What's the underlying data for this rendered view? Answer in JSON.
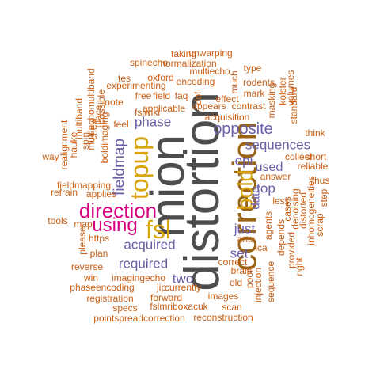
{
  "colors": {
    "grey": "#4d4d4d",
    "brown": "#996515",
    "gold": "#d9a50e",
    "purple": "#6a5fa7",
    "magenta": "#d6007e",
    "orange": "#c95f14"
  },
  "words": [
    {
      "text": "distortion",
      "color": "grey",
      "vertical": true
    },
    {
      "text": "mion",
      "color": "grey",
      "vertical": true
    },
    {
      "text": "correction",
      "color": "brown",
      "vertical": true
    },
    {
      "text": "topup",
      "color": "gold",
      "vertical": true
    },
    {
      "text": "bold",
      "color": "gold",
      "vertical": true
    },
    {
      "text": "fsl",
      "color": "gold",
      "vertical": false
    },
    {
      "text": "direction",
      "color": "magenta",
      "vertical": false
    },
    {
      "text": "using",
      "color": "magenta",
      "vertical": false
    },
    {
      "text": "opposite",
      "color": "purple",
      "vertical": false
    },
    {
      "text": "sequences",
      "color": "purple",
      "vertical": false
    },
    {
      "text": "phase",
      "color": "purple",
      "vertical": false
    },
    {
      "text": "acquired",
      "color": "purple",
      "vertical": false
    },
    {
      "text": "required",
      "color": "purple",
      "vertical": false
    },
    {
      "text": "fieldmap",
      "color": "purple",
      "vertical": true
    },
    {
      "text": "epi",
      "color": "purple",
      "vertical": false
    },
    {
      "text": "used",
      "color": "purple",
      "vertical": false
    },
    {
      "text": "top",
      "color": "purple",
      "vertical": false
    },
    {
      "text": "data",
      "color": "purple",
      "vertical": true
    },
    {
      "text": "just",
      "color": "purple",
      "vertical": false
    },
    {
      "text": "set",
      "color": "purple",
      "vertical": false
    },
    {
      "text": "two",
      "color": "purple",
      "vertical": false
    },
    {
      "text": "taking",
      "color": "orange",
      "vertical": false
    },
    {
      "text": "unwarping",
      "color": "orange",
      "vertical": false
    },
    {
      "text": "spinecho",
      "color": "orange",
      "vertical": false
    },
    {
      "text": "normalization",
      "color": "orange",
      "vertical": false
    },
    {
      "text": "type",
      "color": "orange",
      "vertical": false
    },
    {
      "text": "multiecho",
      "color": "orange",
      "vertical": false
    },
    {
      "text": "tes",
      "color": "orange",
      "vertical": false
    },
    {
      "text": "oxford",
      "color": "orange",
      "vertical": false
    },
    {
      "text": "encoding",
      "color": "orange",
      "vertical": false
    },
    {
      "text": "much",
      "color": "orange",
      "vertical": true
    },
    {
      "text": "rodents",
      "color": "orange",
      "vertical": false
    },
    {
      "text": "experimenting",
      "color": "orange",
      "vertical": false
    },
    {
      "text": "free",
      "color": "orange",
      "vertical": false
    },
    {
      "text": "field",
      "color": "orange",
      "vertical": false
    },
    {
      "text": "faq",
      "color": "orange",
      "vertical": false
    },
    {
      "text": "dof",
      "color": "orange",
      "vertical": true
    },
    {
      "text": "mark",
      "color": "orange",
      "vertical": false
    },
    {
      "text": "effect",
      "color": "orange",
      "vertical": false
    },
    {
      "text": "note",
      "color": "orange",
      "vertical": false
    },
    {
      "text": "applicable",
      "color": "orange",
      "vertical": false
    },
    {
      "text": "appears",
      "color": "orange",
      "vertical": false
    },
    {
      "text": "contrast",
      "color": "orange",
      "vertical": false
    },
    {
      "text": "fslwiki",
      "color": "orange",
      "vertical": false
    },
    {
      "text": "acquisition",
      "color": "orange",
      "vertical": false
    },
    {
      "text": "masking",
      "color": "orange",
      "vertical": true
    },
    {
      "text": "kolster",
      "color": "orange",
      "vertical": true
    },
    {
      "text": "volumes",
      "color": "orange",
      "vertical": true
    },
    {
      "text": "standard",
      "color": "orange",
      "vertical": true
    },
    {
      "text": "multiband",
      "color": "orange",
      "vertical": true
    },
    {
      "text": "multiechomultiband",
      "color": "orange",
      "vertical": true
    },
    {
      "text": "realignment",
      "color": "orange",
      "vertical": true
    },
    {
      "text": "hauke",
      "color": "orange",
      "vertical": true
    },
    {
      "text": "spin",
      "color": "orange",
      "vertical": true
    },
    {
      "text": "chew",
      "color": "orange",
      "vertical": true
    },
    {
      "text": "place",
      "color": "orange",
      "vertical": true
    },
    {
      "text": "possible",
      "color": "orange",
      "vertical": true
    },
    {
      "text": "boldimaging",
      "color": "orange",
      "vertical": true
    },
    {
      "text": "feel",
      "color": "orange",
      "vertical": false
    },
    {
      "text": "think",
      "color": "orange",
      "vertical": false
    },
    {
      "text": "way",
      "color": "orange",
      "vertical": false
    },
    {
      "text": "collect",
      "color": "orange",
      "vertical": false
    },
    {
      "text": "short",
      "color": "orange",
      "vertical": false
    },
    {
      "text": "reliable",
      "color": "orange",
      "vertical": false
    },
    {
      "text": "answer",
      "color": "orange",
      "vertical": false
    },
    {
      "text": "fieldmapping",
      "color": "orange",
      "vertical": false
    },
    {
      "text": "thus",
      "color": "orange",
      "vertical": false
    },
    {
      "text": "refrain",
      "color": "orange",
      "vertical": false
    },
    {
      "text": "applies",
      "color": "orange",
      "vertical": false
    },
    {
      "text": "step",
      "color": "orange",
      "vertical": true
    },
    {
      "text": "less",
      "color": "orange",
      "vertical": false
    },
    {
      "text": "cases",
      "color": "orange",
      "vertical": true
    },
    {
      "text": "denoising",
      "color": "orange",
      "vertical": true
    },
    {
      "text": "distorted",
      "color": "orange",
      "vertical": true
    },
    {
      "text": "inhomogeneities",
      "color": "orange",
      "vertical": true
    },
    {
      "text": "tools",
      "color": "orange",
      "vertical": false
    },
    {
      "text": "map",
      "color": "orange",
      "vertical": false
    },
    {
      "text": "scrap",
      "color": "orange",
      "vertical": true
    },
    {
      "text": "agents",
      "color": "orange",
      "vertical": true
    },
    {
      "text": "https",
      "color": "orange",
      "vertical": false
    },
    {
      "text": "ants",
      "color": "orange",
      "vertical": false
    },
    {
      "text": "depends",
      "color": "orange",
      "vertical": true
    },
    {
      "text": "plan",
      "color": "orange",
      "vertical": false
    },
    {
      "text": "ica",
      "color": "orange",
      "vertical": false
    },
    {
      "text": "provided",
      "color": "orange",
      "vertical": true
    },
    {
      "text": "please",
      "color": "orange",
      "vertical": true
    },
    {
      "text": "correct",
      "color": "orange",
      "vertical": false
    },
    {
      "text": "reverse",
      "color": "orange",
      "vertical": false
    },
    {
      "text": "brain",
      "color": "orange",
      "vertical": false
    },
    {
      "text": "right",
      "color": "orange",
      "vertical": true
    },
    {
      "text": "imaging",
      "color": "orange",
      "vertical": false
    },
    {
      "text": "win",
      "color": "orange",
      "vertical": false
    },
    {
      "text": "echo",
      "color": "orange",
      "vertical": false
    },
    {
      "text": "poor",
      "color": "orange",
      "vertical": true
    },
    {
      "text": "sequence",
      "color": "orange",
      "vertical": true
    },
    {
      "text": "phaseencoding",
      "color": "orange",
      "vertical": false
    },
    {
      "text": "jip",
      "color": "orange",
      "vertical": false
    },
    {
      "text": "currently",
      "color": "orange",
      "vertical": false
    },
    {
      "text": "old",
      "color": "orange",
      "vertical": false
    },
    {
      "text": "injection",
      "color": "orange",
      "vertical": true
    },
    {
      "text": "registration",
      "color": "orange",
      "vertical": false
    },
    {
      "text": "forward",
      "color": "orange",
      "vertical": false
    },
    {
      "text": "images",
      "color": "orange",
      "vertical": false
    },
    {
      "text": "specs",
      "color": "orange",
      "vertical": false
    },
    {
      "text": "fslmriboxacuk",
      "color": "orange",
      "vertical": false
    },
    {
      "text": "scan",
      "color": "orange",
      "vertical": false
    },
    {
      "text": "pointspreadcorrection",
      "color": "orange",
      "vertical": false
    },
    {
      "text": "reconstruction",
      "color": "orange",
      "vertical": false
    }
  ]
}
